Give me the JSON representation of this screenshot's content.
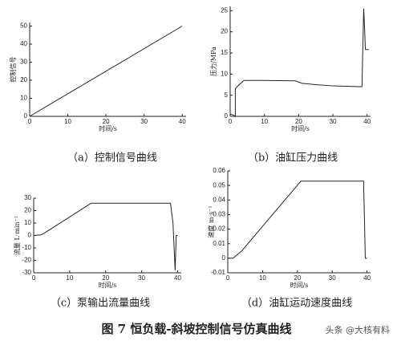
{
  "chart_data": [
    {
      "type": "line",
      "title": "（a）控制信号曲线",
      "xlabel": "时间/s",
      "ylabel": "控制信号",
      "x": [
        0,
        40
      ],
      "values": [
        0,
        50
      ],
      "color": "#222",
      "xlim": [
        0,
        41
      ],
      "ylim": [
        0,
        52
      ],
      "xticks": [
        0,
        10,
        20,
        30,
        40
      ],
      "yticks": [
        0,
        10,
        20,
        30,
        40,
        50
      ]
    },
    {
      "type": "line",
      "title": "（b）油缸压力曲线",
      "xlabel": "时间/s",
      "ylabel": "压力/MPa",
      "x": [
        0,
        1,
        1.5,
        1.5,
        2,
        4,
        10,
        19,
        21,
        25,
        30,
        38.5,
        39,
        39.3,
        39.5,
        40.5
      ],
      "values": [
        0.5,
        0.3,
        0,
        6.5,
        7,
        8.5,
        8.5,
        8.4,
        7.8,
        7.5,
        7.2,
        7,
        25.5,
        20,
        15.8,
        15.8
      ],
      "color": "#222",
      "xlim": [
        0,
        41
      ],
      "ylim": [
        0,
        26
      ],
      "xticks": [
        0,
        10,
        20,
        30,
        40
      ],
      "yticks": [
        0,
        5,
        10,
        15,
        20,
        25
      ]
    },
    {
      "type": "line",
      "title": "（c）泵输出流量曲线",
      "xlabel": "时间/s",
      "ylabel": "流量 L·min⁻¹",
      "x": [
        0,
        2,
        3,
        16,
        38,
        38.7,
        39.3,
        39.6,
        40
      ],
      "values": [
        0,
        0.5,
        2,
        26,
        26,
        10,
        -28,
        0,
        0
      ],
      "color": "#222",
      "xlim": [
        0,
        41
      ],
      "ylim": [
        -30,
        30
      ],
      "xticks": [
        0,
        10,
        20,
        30,
        40
      ],
      "yticks": [
        -30,
        -20,
        -10,
        0,
        10,
        20,
        30
      ]
    },
    {
      "type": "line",
      "title": "（d）油缸运动速度曲线",
      "xlabel": "时间/s",
      "ylabel": "速度 m·s⁻¹",
      "x": [
        0,
        1.5,
        2,
        4,
        21,
        39,
        39.5,
        40
      ],
      "values": [
        0,
        0,
        0.001,
        0.005,
        0.053,
        0.053,
        0,
        0
      ],
      "color": "#222",
      "xlim": [
        0,
        41
      ],
      "ylim": [
        -0.01,
        0.06
      ],
      "xticks": [
        0,
        10,
        20,
        30,
        40
      ],
      "yticks": [
        -0.01,
        0,
        0.01,
        0.02,
        0.03,
        0.04,
        0.05,
        0.06
      ]
    }
  ],
  "figure_caption": "图 7  恒负载-斜坡控制信号仿真曲线",
  "watermark": "头条 @大核有料"
}
